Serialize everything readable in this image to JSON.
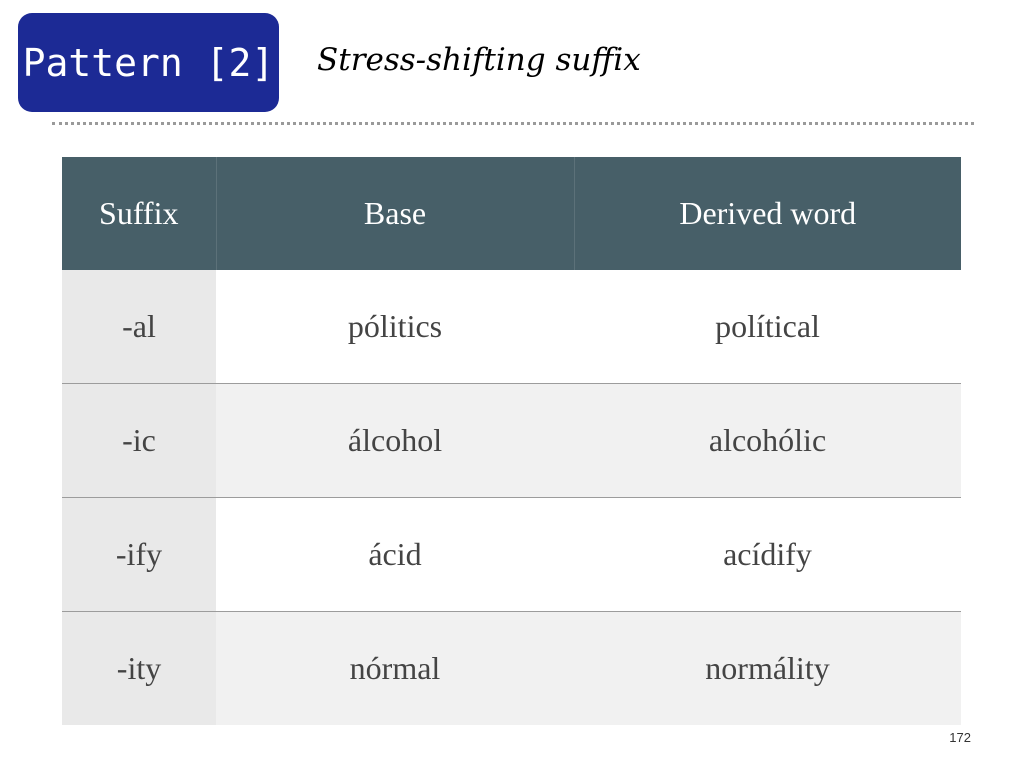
{
  "header": {
    "pattern_label": "Pattern [2]",
    "subtitle": "Stress-shifting suffix"
  },
  "table": {
    "columns": [
      "Suffix",
      "Base",
      "Derived word"
    ],
    "rows": [
      {
        "suffix": "-al",
        "base": "pólitics",
        "derived": "polítical"
      },
      {
        "suffix": "-ic",
        "base": "álcohol",
        "derived": "alcohólic"
      },
      {
        "suffix": "-ify",
        "base": "ácid",
        "derived": "acídify"
      },
      {
        "suffix": "-ity",
        "base": "nórmal",
        "derived": "normálity"
      }
    ]
  },
  "footer": {
    "page_number": "172"
  },
  "colors": {
    "badge": "#1c2a95",
    "table_header": "#475f68"
  }
}
